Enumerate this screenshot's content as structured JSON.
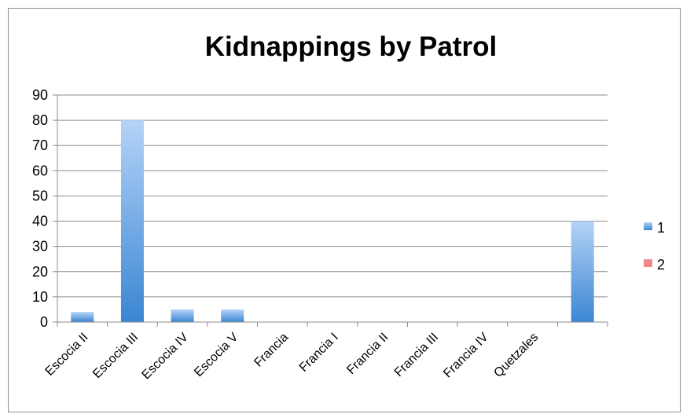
{
  "chart_data": {
    "type": "bar",
    "title": "Kidnappings by Patrol",
    "xlabel": "",
    "ylabel": "",
    "categories": [
      "Escocia II",
      "Escocia III",
      "Escocia IV",
      "Escocia V",
      "Francia",
      "Francia I",
      "Francia II",
      "Francia III",
      "Francia IV",
      "Quetzales",
      ""
    ],
    "series": [
      {
        "name": "1",
        "values": [
          4,
          80,
          5,
          5,
          0,
          0,
          0,
          0,
          0,
          0,
          40
        ]
      },
      {
        "name": "2",
        "values": [
          0,
          0,
          0,
          0,
          0,
          0,
          0,
          0,
          0,
          0,
          0
        ]
      }
    ],
    "ylim": [
      0,
      90
    ],
    "yticks": [
      0,
      10,
      20,
      30,
      40,
      50,
      60,
      70,
      80,
      90
    ],
    "grid": true,
    "legend_position": "right",
    "colors": {
      "series1_light": "#b5d3f7",
      "series1_dark": "#3a86d3",
      "series2": "#f08a8a",
      "grid": "#8c8c8c",
      "axis": "#8c8c8c"
    }
  }
}
